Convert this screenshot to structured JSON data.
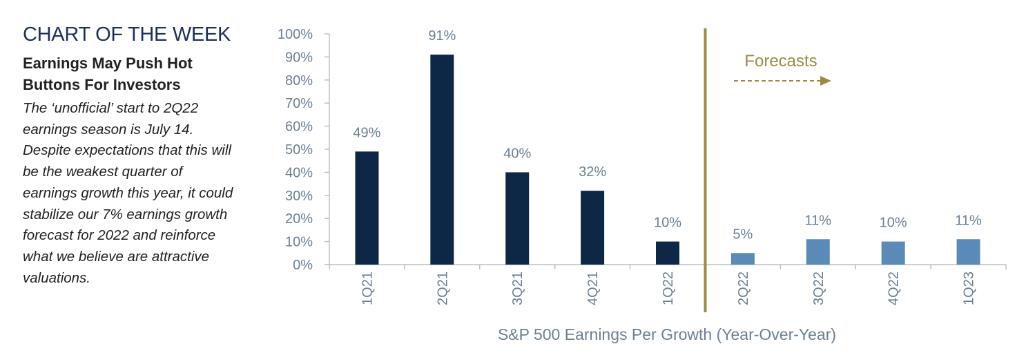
{
  "sidebar": {
    "kicker": "CHART OF THE WEEK",
    "headline_line1": "Earnings May Push Hot",
    "headline_line2": "Buttons For Investors",
    "body_lines": [
      "The ‘unofficial’ start to 2Q22",
      "earnings season is July 14.",
      "Despite expectations that this will",
      "be the weakest quarter of",
      "earnings growth this year, it could",
      "stabilize our 7% earnings growth",
      "forecast for 2022 and reinforce",
      "what we believe are attractive",
      "valuations."
    ]
  },
  "chart_data": {
    "type": "bar",
    "categories": [
      "1Q21",
      "2Q21",
      "3Q21",
      "4Q21",
      "1Q22",
      "2Q22",
      "3Q22",
      "4Q22",
      "1Q23"
    ],
    "values": [
      49,
      91,
      40,
      32,
      10,
      5,
      11,
      10,
      11
    ],
    "data_labels": [
      "49%",
      "91%",
      "40%",
      "32%",
      "10%",
      "5%",
      "11%",
      "10%",
      "11%"
    ],
    "forecast": [
      false,
      false,
      false,
      false,
      false,
      true,
      true,
      true,
      true
    ],
    "xlabel": "S&P 500 Earnings Per Growth (Year-Over-Year)",
    "ylabel": "",
    "ylim": [
      0,
      100
    ],
    "yticks": [
      0,
      10,
      20,
      30,
      40,
      50,
      60,
      70,
      80,
      90,
      100
    ],
    "ytick_labels": [
      "0%",
      "10%",
      "20%",
      "30%",
      "40%",
      "50%",
      "60%",
      "70%",
      "80%",
      "90%",
      "100%"
    ],
    "annotation": "Forecasts",
    "grid": false,
    "colors": {
      "actual": "#0d2847",
      "forecast": "#5a8ab8",
      "divider": "#9e8a45",
      "axis": "#b7c0c8",
      "text": "#6b7f93"
    }
  }
}
